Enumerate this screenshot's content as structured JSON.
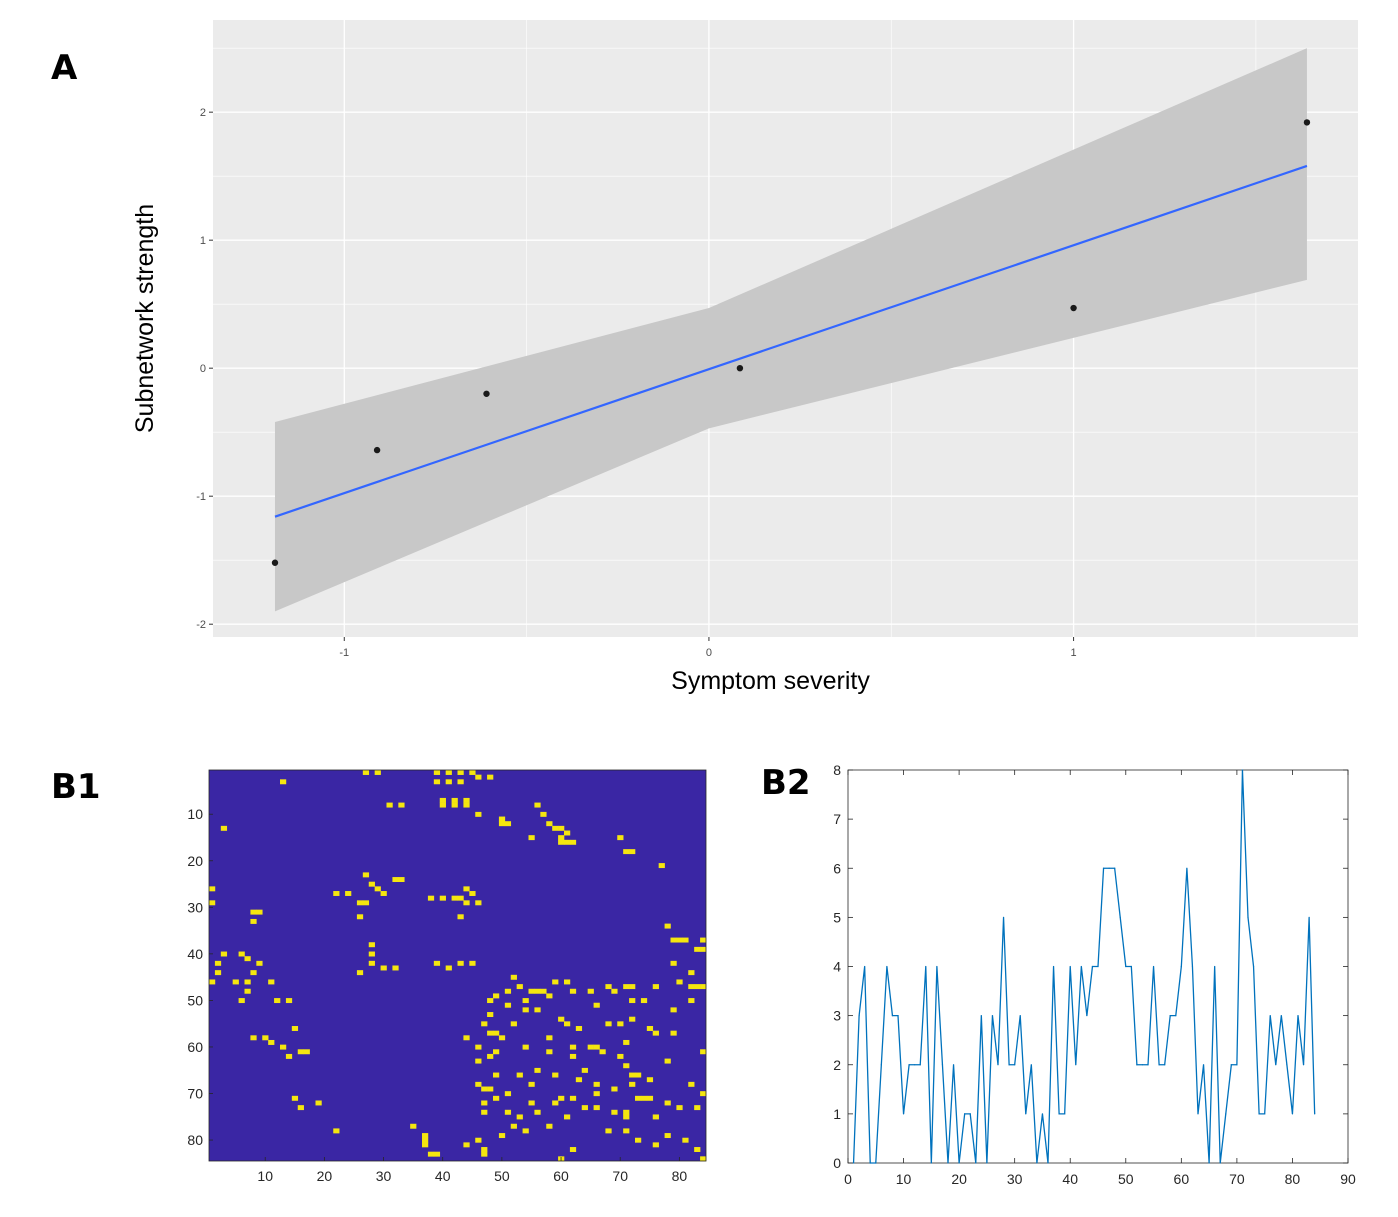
{
  "panels": {
    "a": "A",
    "b1": "B1",
    "b2": "B2"
  },
  "chart_data": [
    {
      "id": "A",
      "type": "scatter",
      "title": "",
      "xlabel": "Symptom severity",
      "ylabel": "Subnetwork strength",
      "xlim": [
        -1.36,
        1.78
      ],
      "ylim": [
        -2.1,
        2.72
      ],
      "xticks": [
        -1,
        0,
        1
      ],
      "xtick_labels": [
        "-1",
        "0",
        "1"
      ],
      "yticks": [
        -2,
        -1,
        0,
        1,
        2
      ],
      "ytick_labels": [
        "-2",
        "-1",
        "0",
        "1",
        "2"
      ],
      "grid": true,
      "points": {
        "x": [
          -1.19,
          -0.91,
          -0.61,
          0.085,
          1.0,
          1.64
        ],
        "y": [
          -1.52,
          -0.64,
          -0.2,
          0.0,
          0.47,
          1.92
        ]
      },
      "fit_line": {
        "x": [
          -1.19,
          1.64
        ],
        "y": [
          -1.16,
          1.58
        ]
      },
      "confidence_band": {
        "x": [
          -1.19,
          0.0,
          1.64
        ],
        "lower": [
          -1.9,
          -0.47,
          0.69
        ],
        "upper": [
          -0.42,
          0.47,
          2.5
        ]
      },
      "colors": {
        "panel_bg": "#ebebeb",
        "grid": "#ffffff",
        "band": "#c8c8c8",
        "line": "#3366ff",
        "point": "#1a1a1a"
      }
    },
    {
      "id": "B1",
      "type": "heatmap",
      "title": "",
      "size": 84,
      "xticks": [
        10,
        20,
        30,
        40,
        50,
        60,
        70,
        80
      ],
      "yticks": [
        10,
        20,
        30,
        40,
        50,
        60,
        70,
        80
      ],
      "colors": {
        "background": "#3a26a4",
        "cell": "#f5e60f"
      },
      "cells": [
        [
          13,
          3
        ],
        [
          27,
          1
        ],
        [
          29,
          1
        ],
        [
          39,
          1
        ],
        [
          41,
          1
        ],
        [
          43,
          1
        ],
        [
          45,
          1
        ],
        [
          39,
          3
        ],
        [
          41,
          3
        ],
        [
          43,
          3
        ],
        [
          46,
          2
        ],
        [
          48,
          2
        ],
        [
          31,
          8
        ],
        [
          33,
          8
        ],
        [
          40,
          7
        ],
        [
          42,
          7
        ],
        [
          44,
          7
        ],
        [
          40,
          8
        ],
        [
          42,
          8
        ],
        [
          44,
          8
        ],
        [
          46,
          10
        ],
        [
          50,
          11
        ],
        [
          50,
          12
        ],
        [
          51,
          12
        ],
        [
          56,
          8
        ],
        [
          57,
          10
        ],
        [
          58,
          12
        ],
        [
          59,
          13
        ],
        [
          60,
          13
        ],
        [
          61,
          14
        ],
        [
          60,
          15
        ],
        [
          60,
          16
        ],
        [
          61,
          16
        ],
        [
          55,
          15
        ],
        [
          62,
          16
        ],
        [
          3,
          13
        ],
        [
          70,
          15
        ],
        [
          71,
          18
        ],
        [
          72,
          18
        ],
        [
          77,
          21
        ],
        [
          1,
          26
        ],
        [
          1,
          29
        ],
        [
          8,
          31
        ],
        [
          9,
          31
        ],
        [
          8,
          33
        ],
        [
          22,
          27
        ],
        [
          24,
          27
        ],
        [
          26,
          29
        ],
        [
          26,
          32
        ],
        [
          27,
          23
        ],
        [
          27,
          29
        ],
        [
          28,
          25
        ],
        [
          29,
          26
        ],
        [
          30,
          27
        ],
        [
          32,
          24
        ],
        [
          33,
          24
        ],
        [
          38,
          28
        ],
        [
          40,
          28
        ],
        [
          42,
          28
        ],
        [
          43,
          28
        ],
        [
          44,
          26
        ],
        [
          44,
          29
        ],
        [
          45,
          27
        ],
        [
          46,
          29
        ],
        [
          43,
          32
        ],
        [
          78,
          34
        ],
        [
          79,
          37
        ],
        [
          80,
          37
        ],
        [
          81,
          37
        ],
        [
          84,
          37
        ],
        [
          84,
          39
        ],
        [
          28,
          38
        ],
        [
          28,
          40
        ],
        [
          28,
          42
        ],
        [
          26,
          44
        ],
        [
          30,
          43
        ],
        [
          32,
          43
        ],
        [
          39,
          42
        ],
        [
          41,
          43
        ],
        [
          43,
          42
        ],
        [
          45,
          42
        ],
        [
          3,
          40
        ],
        [
          2,
          42
        ],
        [
          2,
          44
        ],
        [
          6,
          40
        ],
        [
          7,
          41
        ],
        [
          9,
          42
        ],
        [
          5,
          46
        ],
        [
          7,
          46
        ],
        [
          8,
          44
        ],
        [
          7,
          48
        ],
        [
          6,
          50
        ],
        [
          11,
          46
        ],
        [
          12,
          50
        ],
        [
          14,
          50
        ],
        [
          1,
          46
        ],
        [
          48,
          50
        ],
        [
          49,
          49
        ],
        [
          51,
          48
        ],
        [
          51,
          51
        ],
        [
          53,
          47
        ],
        [
          54,
          50
        ],
        [
          55,
          48
        ],
        [
          56,
          48
        ],
        [
          57,
          48
        ],
        [
          58,
          49
        ],
        [
          59,
          46
        ],
        [
          61,
          46
        ],
        [
          62,
          48
        ],
        [
          65,
          48
        ],
        [
          66,
          51
        ],
        [
          68,
          47
        ],
        [
          69,
          48
        ],
        [
          71,
          47
        ],
        [
          72,
          47
        ],
        [
          72,
          50
        ],
        [
          74,
          50
        ],
        [
          76,
          47
        ],
        [
          80,
          46
        ],
        [
          82,
          47
        ],
        [
          83,
          47
        ],
        [
          84,
          47
        ],
        [
          47,
          55
        ],
        [
          48,
          57
        ],
        [
          49,
          57
        ],
        [
          50,
          58
        ],
        [
          52,
          55
        ],
        [
          54,
          52
        ],
        [
          56,
          52
        ],
        [
          60,
          54
        ],
        [
          61,
          55
        ],
        [
          63,
          56
        ],
        [
          66,
          60
        ],
        [
          68,
          55
        ],
        [
          70,
          55
        ],
        [
          72,
          54
        ],
        [
          75,
          56
        ],
        [
          76,
          57
        ],
        [
          79,
          52
        ],
        [
          82,
          50
        ],
        [
          15,
          56
        ],
        [
          16,
          61
        ],
        [
          17,
          61
        ],
        [
          13,
          60
        ],
        [
          14,
          62
        ],
        [
          10,
          58
        ],
        [
          11,
          59
        ],
        [
          8,
          58
        ],
        [
          46,
          60
        ],
        [
          48,
          62
        ],
        [
          49,
          61
        ],
        [
          54,
          60
        ],
        [
          58,
          61
        ],
        [
          62,
          60
        ],
        [
          65,
          60
        ],
        [
          67,
          61
        ],
        [
          70,
          62
        ],
        [
          72,
          66
        ],
        [
          73,
          66
        ],
        [
          78,
          63
        ],
        [
          84,
          61
        ],
        [
          71,
          64
        ],
        [
          46,
          68
        ],
        [
          47,
          69
        ],
        [
          48,
          69
        ],
        [
          47,
          72
        ],
        [
          51,
          70
        ],
        [
          55,
          68
        ],
        [
          59,
          72
        ],
        [
          62,
          71
        ],
        [
          64,
          73
        ],
        [
          66,
          73
        ],
        [
          69,
          74
        ],
        [
          71,
          74
        ],
        [
          71,
          75
        ],
        [
          73,
          71
        ],
        [
          74,
          71
        ],
        [
          75,
          71
        ],
        [
          80,
          73
        ],
        [
          83,
          73
        ],
        [
          84,
          70
        ],
        [
          15,
          71
        ],
        [
          19,
          72
        ],
        [
          16,
          73
        ],
        [
          22,
          78
        ],
        [
          35,
          77
        ],
        [
          37,
          79
        ],
        [
          37,
          80
        ],
        [
          37,
          81
        ],
        [
          38,
          83
        ],
        [
          39,
          83
        ],
        [
          44,
          81
        ],
        [
          46,
          80
        ],
        [
          47,
          82
        ],
        [
          47,
          83
        ],
        [
          50,
          79
        ],
        [
          52,
          77
        ],
        [
          54,
          78
        ],
        [
          60,
          84
        ],
        [
          62,
          82
        ],
        [
          68,
          78
        ],
        [
          71,
          78
        ],
        [
          73,
          80
        ],
        [
          76,
          81
        ],
        [
          78,
          79
        ],
        [
          81,
          80
        ],
        [
          83,
          82
        ],
        [
          84,
          84
        ],
        [
          51,
          74
        ],
        [
          53,
          75
        ],
        [
          56,
          74
        ],
        [
          60,
          71
        ],
        [
          63,
          67
        ],
        [
          66,
          70
        ],
        [
          69,
          69
        ],
        [
          75,
          67
        ],
        [
          78,
          72
        ],
        [
          82,
          68
        ],
        [
          44,
          58
        ],
        [
          46,
          63
        ],
        [
          49,
          66
        ],
        [
          56,
          65
        ],
        [
          59,
          66
        ],
        [
          76,
          75
        ],
        [
          72,
          68
        ],
        [
          53,
          66
        ],
        [
          47,
          74
        ],
        [
          58,
          77
        ],
        [
          52,
          45
        ],
        [
          79,
          42
        ],
        [
          83,
          39
        ],
        [
          82,
          44
        ],
        [
          79,
          57
        ],
        [
          71,
          59
        ],
        [
          64,
          65
        ],
        [
          66,
          68
        ],
        [
          55,
          72
        ],
        [
          61,
          75
        ],
        [
          62,
          62
        ],
        [
          48,
          53
        ],
        [
          58,
          58
        ],
        [
          49,
          71
        ]
      ]
    },
    {
      "id": "B2",
      "type": "line",
      "title": "",
      "xlabel": "",
      "ylabel": "",
      "xlim": [
        0,
        90
      ],
      "ylim": [
        0,
        8
      ],
      "xticks": [
        0,
        10,
        20,
        30,
        40,
        50,
        60,
        70,
        80,
        90
      ],
      "yticks": [
        0,
        1,
        2,
        3,
        4,
        5,
        6,
        7,
        8
      ],
      "x": [
        1,
        2,
        3,
        4,
        5,
        6,
        7,
        8,
        9,
        10,
        11,
        12,
        13,
        14,
        15,
        16,
        17,
        18,
        19,
        20,
        21,
        22,
        23,
        24,
        25,
        26,
        27,
        28,
        29,
        30,
        31,
        32,
        33,
        34,
        35,
        36,
        37,
        38,
        39,
        40,
        41,
        42,
        43,
        44,
        45,
        46,
        47,
        48,
        49,
        50,
        51,
        52,
        53,
        54,
        55,
        56,
        57,
        58,
        59,
        60,
        61,
        62,
        63,
        64,
        65,
        66,
        67,
        68,
        69,
        70,
        71,
        72,
        73,
        74,
        75,
        76,
        77,
        78,
        79,
        80,
        81,
        82,
        83,
        84
      ],
      "values": [
        0,
        3,
        4,
        0,
        0,
        2,
        4,
        3,
        3,
        1,
        2,
        2,
        2,
        4,
        0,
        4,
        2,
        0,
        2,
        0,
        1,
        1,
        0,
        3,
        0,
        3,
        2,
        5,
        2,
        2,
        3,
        1,
        2,
        0,
        1,
        0,
        4,
        1,
        1,
        4,
        2,
        4,
        3,
        4,
        4,
        6,
        6,
        6,
        5,
        4,
        4,
        2,
        2,
        2,
        4,
        2,
        2,
        3,
        3,
        4,
        6,
        4,
        1,
        2,
        0,
        4,
        0,
        1,
        2,
        2,
        8,
        5,
        4,
        1,
        1,
        3,
        2,
        3,
        2,
        1,
        3,
        2,
        5,
        1
      ],
      "color": "#0072bd"
    }
  ]
}
